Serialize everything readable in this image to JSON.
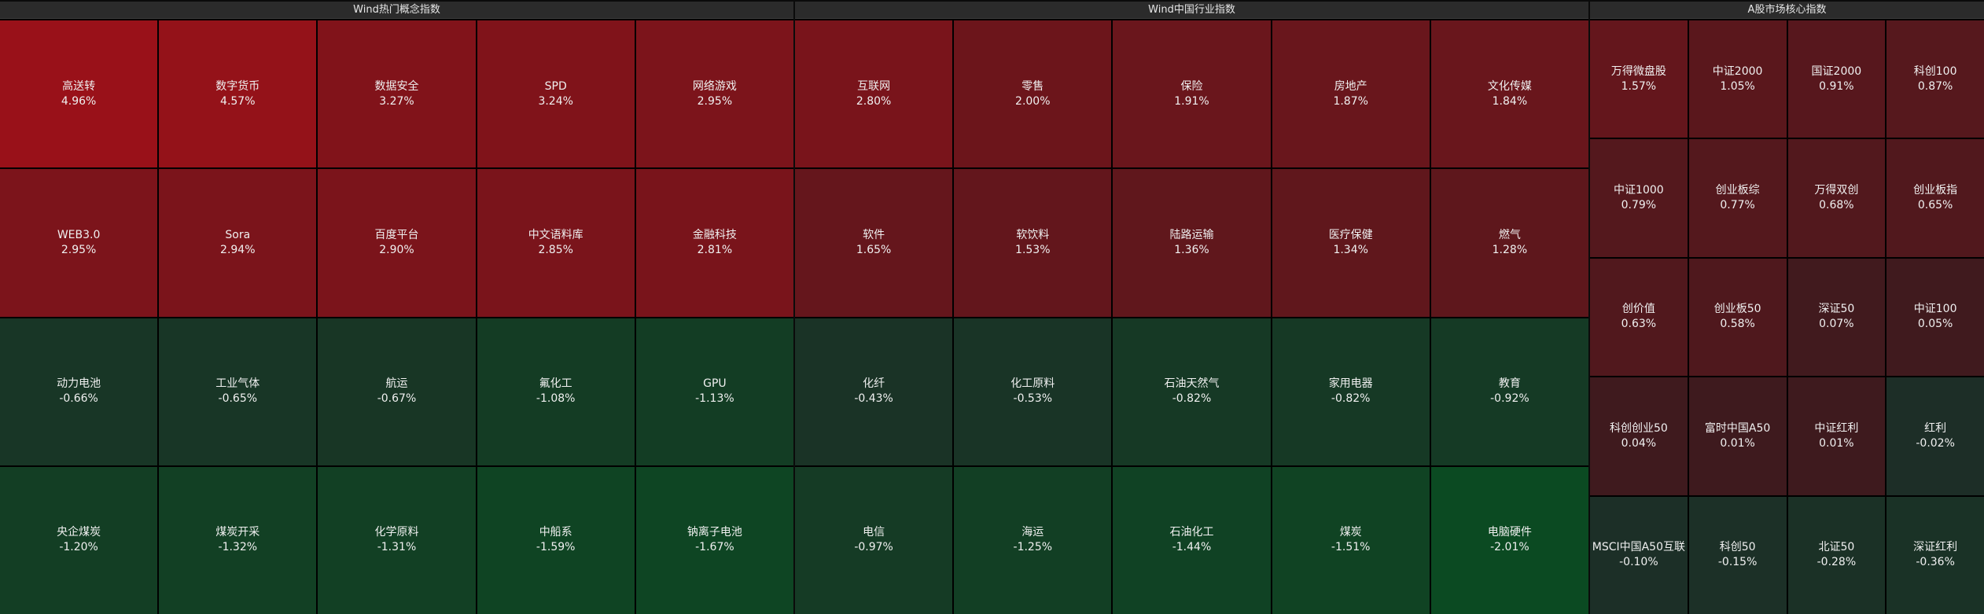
{
  "panels": [
    {
      "title": "Wind热门概念指数",
      "cols": 5,
      "cells": [
        {
          "name": "高送转",
          "pct": "4.96%",
          "value": 4.96
        },
        {
          "name": "数字货币",
          "pct": "4.57%",
          "value": 4.57
        },
        {
          "name": "数据安全",
          "pct": "3.27%",
          "value": 3.27
        },
        {
          "name": "SPD",
          "pct": "3.24%",
          "value": 3.24
        },
        {
          "name": "网络游戏",
          "pct": "2.95%",
          "value": 2.95
        },
        {
          "name": "WEB3.0",
          "pct": "2.95%",
          "value": 2.95
        },
        {
          "name": "Sora",
          "pct": "2.94%",
          "value": 2.94
        },
        {
          "name": "百度平台",
          "pct": "2.90%",
          "value": 2.9
        },
        {
          "name": "中文语料库",
          "pct": "2.85%",
          "value": 2.85
        },
        {
          "name": "金融科技",
          "pct": "2.81%",
          "value": 2.81
        },
        {
          "name": "动力电池",
          "pct": "-0.66%",
          "value": -0.66
        },
        {
          "name": "工业气体",
          "pct": "-0.65%",
          "value": -0.65
        },
        {
          "name": "航运",
          "pct": "-0.67%",
          "value": -0.67
        },
        {
          "name": "氟化工",
          "pct": "-1.08%",
          "value": -1.08
        },
        {
          "name": "GPU",
          "pct": "-1.13%",
          "value": -1.13
        },
        {
          "name": "央企煤炭",
          "pct": "-1.20%",
          "value": -1.2
        },
        {
          "name": "煤炭开采",
          "pct": "-1.32%",
          "value": -1.32
        },
        {
          "name": "化学原料",
          "pct": "-1.31%",
          "value": -1.31
        },
        {
          "name": "中船系",
          "pct": "-1.59%",
          "value": -1.59
        },
        {
          "name": "钠离子电池",
          "pct": "-1.67%",
          "value": -1.67
        }
      ]
    },
    {
      "title": "Wind中国行业指数",
      "cols": 5,
      "cells": [
        {
          "name": "互联网",
          "pct": "2.80%",
          "value": 2.8
        },
        {
          "name": "零售",
          "pct": "2.00%",
          "value": 2.0
        },
        {
          "name": "保险",
          "pct": "1.91%",
          "value": 1.91
        },
        {
          "name": "房地产",
          "pct": "1.87%",
          "value": 1.87
        },
        {
          "name": "文化传媒",
          "pct": "1.84%",
          "value": 1.84
        },
        {
          "name": "软件",
          "pct": "1.65%",
          "value": 1.65
        },
        {
          "name": "软饮料",
          "pct": "1.53%",
          "value": 1.53
        },
        {
          "name": "陆路运输",
          "pct": "1.36%",
          "value": 1.36
        },
        {
          "name": "医疗保健",
          "pct": "1.34%",
          "value": 1.34
        },
        {
          "name": "燃气",
          "pct": "1.28%",
          "value": 1.28
        },
        {
          "name": "化纤",
          "pct": "-0.43%",
          "value": -0.43
        },
        {
          "name": "化工原料",
          "pct": "-0.53%",
          "value": -0.53
        },
        {
          "name": "石油天然气",
          "pct": "-0.82%",
          "value": -0.82
        },
        {
          "name": "家用电器",
          "pct": "-0.82%",
          "value": -0.82
        },
        {
          "name": "教育",
          "pct": "-0.92%",
          "value": -0.92
        },
        {
          "name": "电信",
          "pct": "-0.97%",
          "value": -0.97
        },
        {
          "name": "海运",
          "pct": "-1.25%",
          "value": -1.25
        },
        {
          "name": "石油化工",
          "pct": "-1.44%",
          "value": -1.44
        },
        {
          "name": "煤炭",
          "pct": "-1.51%",
          "value": -1.51
        },
        {
          "name": "电脑硬件",
          "pct": "-2.01%",
          "value": -2.01
        }
      ]
    },
    {
      "title": "A股市场核心指数",
      "cols": 4,
      "cells": [
        {
          "name": "万得微盘股",
          "pct": "1.57%",
          "value": 1.57
        },
        {
          "name": "中证2000",
          "pct": "1.05%",
          "value": 1.05
        },
        {
          "name": "国证2000",
          "pct": "0.91%",
          "value": 0.91
        },
        {
          "name": "科创100",
          "pct": "0.87%",
          "value": 0.87
        },
        {
          "name": "中证1000",
          "pct": "0.79%",
          "value": 0.79
        },
        {
          "name": "创业板综",
          "pct": "0.77%",
          "value": 0.77
        },
        {
          "name": "万得双创",
          "pct": "0.68%",
          "value": 0.68
        },
        {
          "name": "创业板指",
          "pct": "0.65%",
          "value": 0.65
        },
        {
          "name": "创价值",
          "pct": "0.63%",
          "value": 0.63
        },
        {
          "name": "创业板50",
          "pct": "0.58%",
          "value": 0.58
        },
        {
          "name": "深证50",
          "pct": "0.07%",
          "value": 0.07
        },
        {
          "name": "中证100",
          "pct": "0.05%",
          "value": 0.05
        },
        {
          "name": "科创创业50",
          "pct": "0.04%",
          "value": 0.04
        },
        {
          "name": "富时中国A50",
          "pct": "0.01%",
          "value": 0.01
        },
        {
          "name": "中证红利",
          "pct": "0.01%",
          "value": 0.01
        },
        {
          "name": "红利",
          "pct": "-0.02%",
          "value": -0.02
        },
        {
          "name": "MSCI中国A50互联",
          "pct": "-0.10%",
          "value": -0.1
        },
        {
          "name": "科创50",
          "pct": "-0.15%",
          "value": -0.15
        },
        {
          "name": "北证50",
          "pct": "-0.28%",
          "value": -0.28
        },
        {
          "name": "深证红利",
          "pct": "-0.36%",
          "value": -0.36
        }
      ]
    }
  ],
  "colors": {
    "up_strong": "#9a1119",
    "up_weak": "#3d1a1e",
    "down_strong": "#0b4a22",
    "down_weak": "#1d2e27"
  }
}
